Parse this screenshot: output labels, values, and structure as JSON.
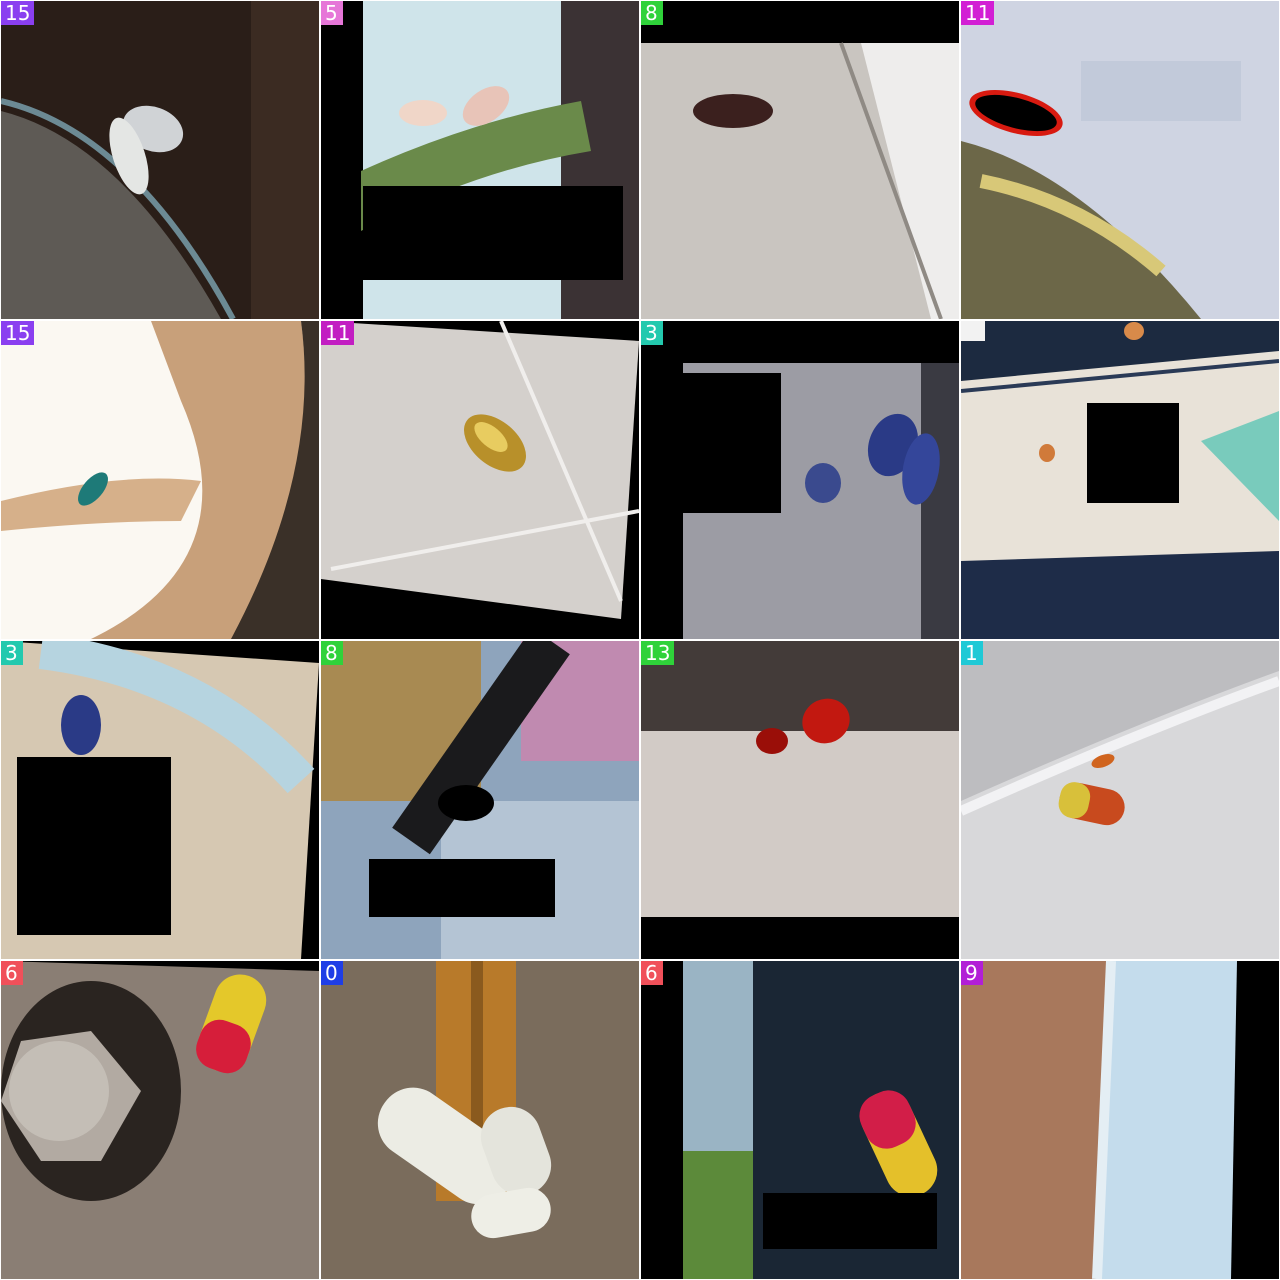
{
  "tiles": [
    {
      "label": "15",
      "color": "#8a3ff0"
    },
    {
      "label": "5",
      "color": "#e676d8"
    },
    {
      "label": "8",
      "color": "#2fd23a"
    },
    {
      "label": "11",
      "color": "#d21fd4"
    },
    {
      "label": "15",
      "color": "#8a3ff0"
    },
    {
      "label": "11",
      "color": "#c21ec2"
    },
    {
      "label": "3",
      "color": "#23c9ae"
    },
    {
      "label": "",
      "color": "#f2f2f2"
    },
    {
      "label": "3",
      "color": "#23c9ae"
    },
    {
      "label": "8",
      "color": "#2fd23a"
    },
    {
      "label": "13",
      "color": "#2fd23a"
    },
    {
      "label": "1",
      "color": "#1fc9d6"
    },
    {
      "label": "6",
      "color": "#f0505a"
    },
    {
      "label": "0",
      "color": "#1f3ee6"
    },
    {
      "label": "6",
      "color": "#f0505a"
    },
    {
      "label": "9",
      "color": "#b21fd6"
    }
  ]
}
